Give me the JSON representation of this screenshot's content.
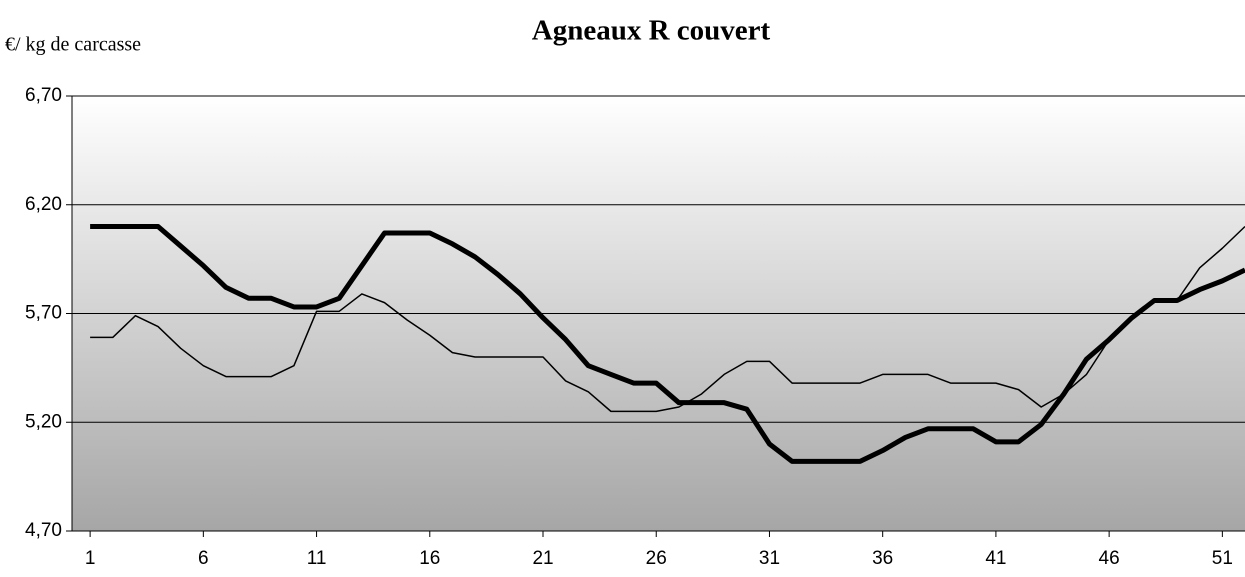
{
  "chart_data": {
    "type": "line",
    "title": "Agneaux R couvert",
    "y_label": "€/ kg de carcasse",
    "x": [
      1,
      2,
      3,
      4,
      5,
      6,
      7,
      8,
      9,
      10,
      11,
      12,
      13,
      14,
      15,
      16,
      17,
      18,
      19,
      20,
      21,
      22,
      23,
      24,
      25,
      26,
      27,
      28,
      29,
      30,
      31,
      32,
      33,
      34,
      35,
      36,
      37,
      38,
      39,
      40,
      41,
      42,
      43,
      44,
      45,
      46,
      47,
      48,
      49,
      50,
      51,
      52
    ],
    "series": [
      {
        "color": "#000000",
        "line_width": 5,
        "values": [
          6.1,
          6.1,
          6.1,
          6.1,
          6.01,
          5.92,
          5.82,
          5.77,
          5.77,
          5.73,
          5.73,
          5.77,
          5.92,
          6.07,
          6.07,
          6.07,
          6.02,
          5.96,
          5.88,
          5.79,
          5.68,
          5.58,
          5.46,
          5.42,
          5.38,
          5.38,
          5.29,
          5.29,
          5.29,
          5.26,
          5.1,
          5.02,
          5.02,
          5.02,
          5.02,
          5.07,
          5.13,
          5.17,
          5.17,
          5.17,
          5.11,
          5.11,
          5.19,
          5.33,
          5.49,
          5.58,
          5.68,
          5.76,
          5.76,
          5.81,
          5.85,
          5.9
        ]
      },
      {
        "color": "#000000",
        "line_width": 1.5,
        "values": [
          5.59,
          5.59,
          5.69,
          5.64,
          5.54,
          5.46,
          5.41,
          5.41,
          5.41,
          5.46,
          5.71,
          5.71,
          5.79,
          5.75,
          5.67,
          5.6,
          5.52,
          5.5,
          5.5,
          5.5,
          5.5,
          5.39,
          5.34,
          5.25,
          5.25,
          5.25,
          5.27,
          5.33,
          5.42,
          5.48,
          5.48,
          5.38,
          5.38,
          5.38,
          5.38,
          5.42,
          5.42,
          5.42,
          5.38,
          5.38,
          5.38,
          5.35,
          5.27,
          5.33,
          5.42,
          5.58,
          5.68,
          5.76,
          5.76,
          5.91,
          6.0,
          6.1
        ]
      }
    ],
    "xlim": [
      0.2,
      52
    ],
    "xticks": [
      1,
      6,
      11,
      16,
      21,
      26,
      31,
      36,
      41,
      46,
      51
    ],
    "ylim": [
      4.7,
      6.7
    ],
    "yticks": [
      {
        "value": 4.7,
        "label": "4,70"
      },
      {
        "value": 5.2,
        "label": "5,20"
      },
      {
        "value": 5.7,
        "label": "5,70"
      },
      {
        "value": 6.2,
        "label": "6,20"
      },
      {
        "value": 6.7,
        "label": "6,70"
      }
    ],
    "grid": true
  }
}
